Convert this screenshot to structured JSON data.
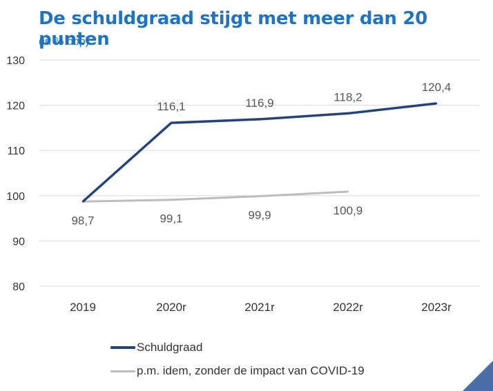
{
  "title": "De schuldgraad stijgt met meer dan 20 punten",
  "subtitle": "(in % bbp)",
  "colors": {
    "title": "#1f73c4",
    "subtitle": "#1f73c4",
    "schuldgraad": "#24427d",
    "zonder_covid": "#bcbcbc",
    "grid": "#d9d9d9",
    "corner": "#4a6fa8"
  },
  "chart_data": {
    "type": "line",
    "title": "De schuldgraad stijgt met meer dan 20 punten",
    "subtitle": "(in % bbp)",
    "xlabel": "",
    "ylabel": "",
    "categories": [
      "2019",
      "2020r",
      "2021r",
      "2022r",
      "2023r"
    ],
    "ylim": [
      80,
      130
    ],
    "yticks": [
      80,
      90,
      100,
      110,
      120,
      130
    ],
    "grid": true,
    "legend_position": "bottom",
    "series": [
      {
        "name": "Schuldgraad",
        "values": [
          98.7,
          116.1,
          116.9,
          118.2,
          120.4
        ],
        "labels": [
          "",
          "116,1",
          "116,9",
          "118,2",
          "120,4"
        ]
      },
      {
        "name": "p.m. idem, zonder de impact van COVID-19",
        "values": [
          98.7,
          99.1,
          99.9,
          100.9,
          null
        ],
        "labels": [
          "98,7",
          "99,1",
          "99,9",
          "100,9",
          ""
        ]
      }
    ]
  }
}
